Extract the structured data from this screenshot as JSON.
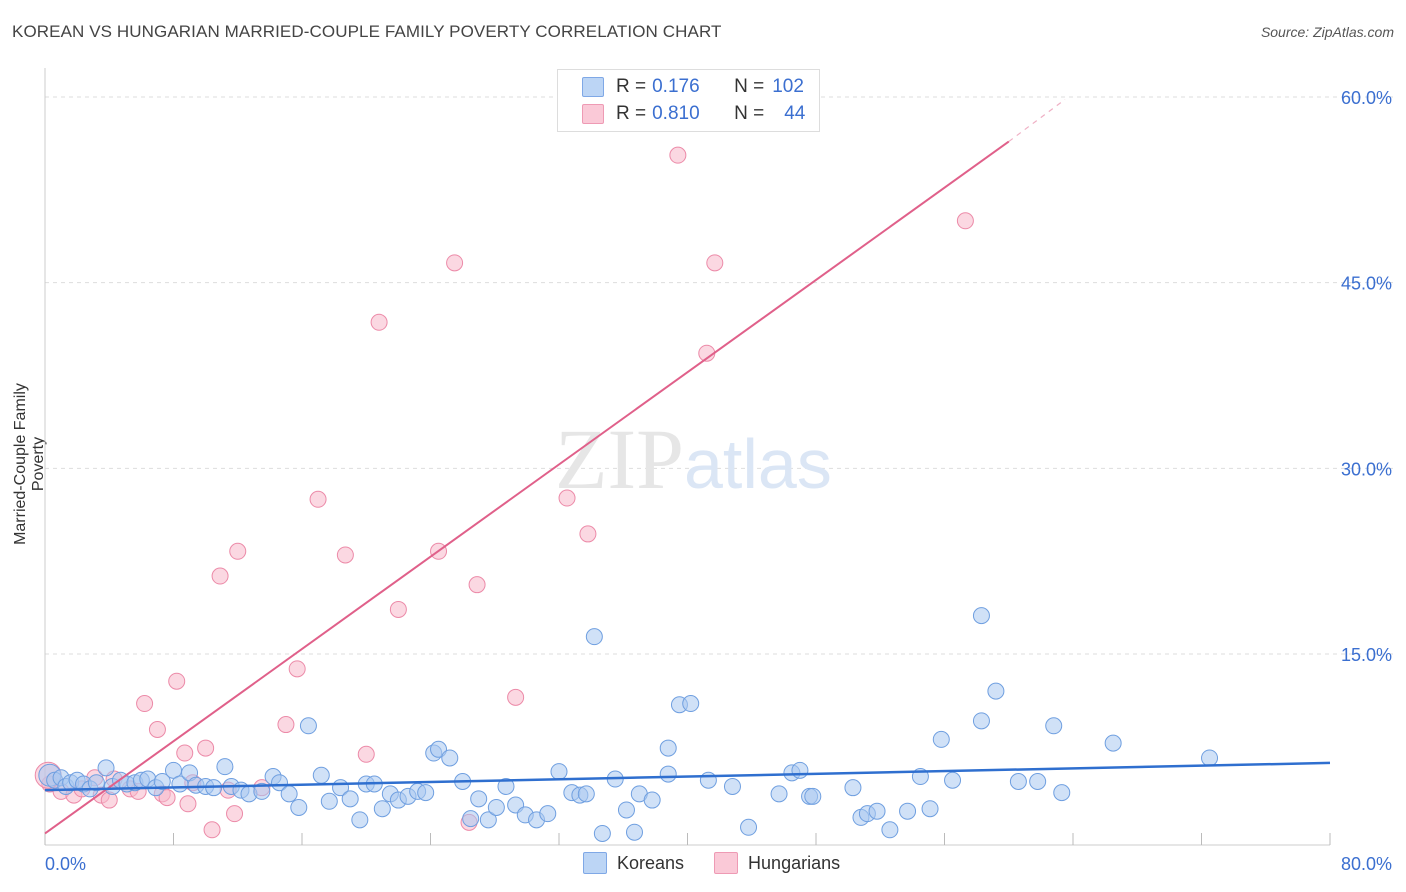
{
  "header": {
    "title": "KOREAN VS HUNGARIAN MARRIED-COUPLE FAMILY POVERTY CORRELATION CHART",
    "source": "Source: ZipAtlas.com"
  },
  "colors": {
    "korean_fill": "#a9c8f0",
    "korean_stroke": "#6f9fe0",
    "korean_line": "#2f6fcf",
    "hungarian_fill": "#f7b8cb",
    "hungarian_stroke": "#ec8aa8",
    "hungarian_line": "#e0608a",
    "axis_text": "#3b6fd0",
    "grid": "#dddddd"
  },
  "legend": {
    "rows": [
      {
        "r_label": "R = ",
        "r_value": "0.176",
        "n_label": "N = ",
        "n_value": "102"
      },
      {
        "r_label": "R = ",
        "r_value": "0.810",
        "n_label": "N = ",
        "n_value": "44"
      }
    ]
  },
  "chart_data": {
    "type": "scatter",
    "title": "KOREAN VS HUNGARIAN MARRIED-COUPLE FAMILY POVERTY CORRELATION CHART",
    "xlabel": "",
    "ylabel": "Married-Couple Family Poverty",
    "xlim": [
      0,
      80
    ],
    "ylim": [
      0,
      63
    ],
    "x_tick_labels": [
      "0.0%",
      "80.0%"
    ],
    "y_ticks": [
      15,
      30,
      45,
      60
    ],
    "y_tick_labels": [
      "15.0%",
      "30.0%",
      "45.0%",
      "60.0%"
    ],
    "watermark": "ZIPatlas",
    "series": [
      {
        "name": "Koreans",
        "r": 0.176,
        "n": 102,
        "trend": {
          "x0": 0,
          "y0": 4.0,
          "x1": 80,
          "y1": 6.2
        },
        "points": [
          [
            0.3,
            5.2
          ],
          [
            0.6,
            4.8
          ],
          [
            1.0,
            5.0
          ],
          [
            1.3,
            4.3
          ],
          [
            1.6,
            4.6
          ],
          [
            2.0,
            4.8
          ],
          [
            2.4,
            4.5
          ],
          [
            2.8,
            4.1
          ],
          [
            3.2,
            4.6
          ],
          [
            3.8,
            5.8
          ],
          [
            4.2,
            4.3
          ],
          [
            4.7,
            4.8
          ],
          [
            5.1,
            4.5
          ],
          [
            5.6,
            4.6
          ],
          [
            6.0,
            4.8
          ],
          [
            6.4,
            4.9
          ],
          [
            6.9,
            4.2
          ],
          [
            7.3,
            4.7
          ],
          [
            8.0,
            5.6
          ],
          [
            8.4,
            4.5
          ],
          [
            9.0,
            5.4
          ],
          [
            9.4,
            4.4
          ],
          [
            10.0,
            4.3
          ],
          [
            10.5,
            4.2
          ],
          [
            11.2,
            5.9
          ],
          [
            11.6,
            4.3
          ],
          [
            12.2,
            4.0
          ],
          [
            12.7,
            3.7
          ],
          [
            13.5,
            3.9
          ],
          [
            14.2,
            5.1
          ],
          [
            14.6,
            4.6
          ],
          [
            15.2,
            3.7
          ],
          [
            15.8,
            2.6
          ],
          [
            16.4,
            9.2
          ],
          [
            17.2,
            5.2
          ],
          [
            17.7,
            3.1
          ],
          [
            18.4,
            4.2
          ],
          [
            19.0,
            3.3
          ],
          [
            19.6,
            1.6
          ],
          [
            20.0,
            4.5
          ],
          [
            20.5,
            4.5
          ],
          [
            21.0,
            2.5
          ],
          [
            21.5,
            3.7
          ],
          [
            22.0,
            3.2
          ],
          [
            22.6,
            3.5
          ],
          [
            23.2,
            3.9
          ],
          [
            23.7,
            3.8
          ],
          [
            24.2,
            7.0
          ],
          [
            24.5,
            7.3
          ],
          [
            25.2,
            6.6
          ],
          [
            26.0,
            4.7
          ],
          [
            26.5,
            1.7
          ],
          [
            27.0,
            3.3
          ],
          [
            27.6,
            1.6
          ],
          [
            28.1,
            2.6
          ],
          [
            28.7,
            4.3
          ],
          [
            29.3,
            2.8
          ],
          [
            29.9,
            2.0
          ],
          [
            30.6,
            1.6
          ],
          [
            31.3,
            2.1
          ],
          [
            32.0,
            5.5
          ],
          [
            32.8,
            3.8
          ],
          [
            33.3,
            3.6
          ],
          [
            33.7,
            3.7
          ],
          [
            34.2,
            16.4
          ],
          [
            34.7,
            0.5
          ],
          [
            35.5,
            4.9
          ],
          [
            36.2,
            2.4
          ],
          [
            36.7,
            0.6
          ],
          [
            37.0,
            3.7
          ],
          [
            37.8,
            3.2
          ],
          [
            38.8,
            5.3
          ],
          [
            38.8,
            7.4
          ],
          [
            39.5,
            10.9
          ],
          [
            40.2,
            11.0
          ],
          [
            41.3,
            4.8
          ],
          [
            42.8,
            4.3
          ],
          [
            43.8,
            1.0
          ],
          [
            45.7,
            3.7
          ],
          [
            46.5,
            5.4
          ],
          [
            47.0,
            5.6
          ],
          [
            47.6,
            3.5
          ],
          [
            47.8,
            3.5
          ],
          [
            50.3,
            4.2
          ],
          [
            50.8,
            1.8
          ],
          [
            51.2,
            2.1
          ],
          [
            51.8,
            2.3
          ],
          [
            52.6,
            0.8
          ],
          [
            53.7,
            2.3
          ],
          [
            54.5,
            5.1
          ],
          [
            55.1,
            2.5
          ],
          [
            55.8,
            8.1
          ],
          [
            56.5,
            4.8
          ],
          [
            58.3,
            9.6
          ],
          [
            58.3,
            18.1
          ],
          [
            59.2,
            12.0
          ],
          [
            60.6,
            4.7
          ],
          [
            61.8,
            4.7
          ],
          [
            62.8,
            9.2
          ],
          [
            63.3,
            3.8
          ],
          [
            66.5,
            7.8
          ],
          [
            72.5,
            6.6
          ]
        ]
      },
      {
        "name": "Hungarians",
        "r": 0.81,
        "n": 44,
        "trend": {
          "x0": 0,
          "y0": 0.5,
          "x1": 60,
          "y1": 56.4
        },
        "trend_dashed_end": {
          "x": 63.5,
          "y": 59.8
        },
        "points": [
          [
            0.3,
            4.5
          ],
          [
            1.0,
            3.9
          ],
          [
            1.8,
            3.6
          ],
          [
            2.3,
            4.1
          ],
          [
            3.1,
            5.0
          ],
          [
            3.5,
            3.6
          ],
          [
            4.0,
            3.2
          ],
          [
            4.3,
            4.9
          ],
          [
            5.3,
            4.1
          ],
          [
            5.8,
            3.9
          ],
          [
            6.2,
            11.0
          ],
          [
            7.0,
            8.9
          ],
          [
            7.3,
            3.7
          ],
          [
            7.6,
            3.4
          ],
          [
            8.2,
            12.8
          ],
          [
            8.7,
            7.0
          ],
          [
            8.9,
            2.9
          ],
          [
            9.2,
            4.6
          ],
          [
            10.0,
            7.4
          ],
          [
            10.4,
            0.8
          ],
          [
            10.9,
            21.3
          ],
          [
            11.4,
            4.0
          ],
          [
            11.8,
            2.1
          ],
          [
            12.0,
            23.3
          ],
          [
            13.5,
            4.2
          ],
          [
            15.0,
            9.3
          ],
          [
            15.7,
            13.8
          ],
          [
            17.0,
            27.5
          ],
          [
            18.7,
            23.0
          ],
          [
            20.0,
            6.9
          ],
          [
            20.8,
            41.8
          ],
          [
            22.0,
            18.6
          ],
          [
            24.5,
            23.3
          ],
          [
            25.5,
            46.6
          ],
          [
            26.4,
            1.4
          ],
          [
            26.9,
            20.6
          ],
          [
            29.3,
            11.5
          ],
          [
            32.5,
            27.6
          ],
          [
            33.8,
            24.7
          ],
          [
            39.4,
            55.3
          ],
          [
            41.2,
            39.3
          ],
          [
            41.7,
            46.6
          ],
          [
            57.3,
            50.0
          ],
          [
            0.2,
            5.2
          ]
        ]
      }
    ]
  },
  "bottom_legend": {
    "items": [
      {
        "label": "Koreans"
      },
      {
        "label": "Hungarians"
      }
    ]
  }
}
